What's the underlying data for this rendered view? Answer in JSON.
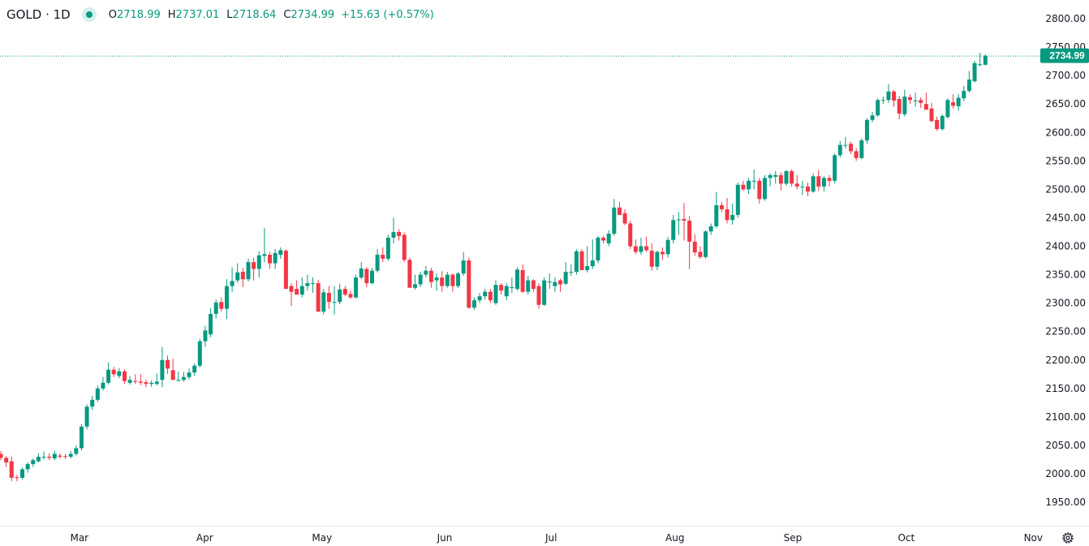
{
  "header": {
    "symbol": "GOLD · 1D",
    "open_label": "O",
    "open": "2718.99",
    "high_label": "H",
    "high": "2737.01",
    "low_label": "L",
    "low": "2718.64",
    "close_label": "C",
    "close": "2734.99",
    "change": "+15.63 (+0.57%)"
  },
  "colors": {
    "up": "#089981",
    "down": "#f23645",
    "text": "#131722"
  },
  "settings_icon": "gear-icon",
  "chart_data": {
    "type": "candlestick",
    "title": "",
    "ylim": [
      1925,
      2815
    ],
    "y_ticks": [
      "2800.00",
      "2750.00",
      "2700.00",
      "2650.00",
      "2600.00",
      "2550.00",
      "2500.00",
      "2450.00",
      "2400.00",
      "2350.00",
      "2300.00",
      "2250.00",
      "2200.00",
      "2150.00",
      "2100.00",
      "2050.00",
      "2000.00",
      "1950.00"
    ],
    "x_ticks": [
      {
        "label": "Mar",
        "bar": 14.6
      },
      {
        "label": "Apr",
        "bar": 37.9
      },
      {
        "label": "May",
        "bar": 59.7
      },
      {
        "label": "Jun",
        "bar": 82.5
      },
      {
        "label": "Jul",
        "bar": 102.3
      },
      {
        "label": "Aug",
        "bar": 125.3
      },
      {
        "label": "Sep",
        "bar": 147.2
      },
      {
        "label": "Oct",
        "bar": 168.3
      },
      {
        "label": "Nov",
        "bar": 191.9
      }
    ],
    "last_price": "2734.99",
    "last_price_value": 2734.99,
    "grid": false,
    "candles_ohlc": [
      [
        2035,
        2040,
        2024,
        2028
      ],
      [
        2028,
        2031,
        2012,
        2020
      ],
      [
        2022,
        2030,
        1987,
        1993
      ],
      [
        1994,
        1998,
        1987,
        1993
      ],
      [
        1993,
        2011,
        1990,
        2008
      ],
      [
        2008,
        2020,
        2002,
        2017
      ],
      [
        2017,
        2027,
        2012,
        2024
      ],
      [
        2022,
        2036,
        2020,
        2030
      ],
      [
        2029,
        2039,
        2025,
        2030
      ],
      [
        2030,
        2036,
        2024,
        2028
      ],
      [
        2027,
        2041,
        2024,
        2035
      ],
      [
        2032,
        2036,
        2027,
        2030
      ],
      [
        2031,
        2035,
        2026,
        2030
      ],
      [
        2030,
        2040,
        2027,
        2035
      ],
      [
        2035,
        2050,
        2032,
        2045
      ],
      [
        2045,
        2087,
        2041,
        2083
      ],
      [
        2083,
        2122,
        2078,
        2118
      ],
      [
        2118,
        2137,
        2112,
        2130
      ],
      [
        2130,
        2155,
        2126,
        2150
      ],
      [
        2150,
        2170,
        2146,
        2160
      ],
      [
        2160,
        2196,
        2157,
        2183
      ],
      [
        2183,
        2188,
        2170,
        2175
      ],
      [
        2172,
        2186,
        2168,
        2180
      ],
      [
        2180,
        2184,
        2158,
        2163
      ],
      [
        2160,
        2172,
        2157,
        2165
      ],
      [
        2163,
        2175,
        2158,
        2162
      ],
      [
        2162,
        2175,
        2156,
        2160
      ],
      [
        2161,
        2165,
        2152,
        2158
      ],
      [
        2158,
        2164,
        2153,
        2160
      ],
      [
        2158,
        2176,
        2155,
        2162
      ],
      [
        2165,
        2223,
        2152,
        2200
      ],
      [
        2200,
        2208,
        2176,
        2185
      ],
      [
        2182,
        2202,
        2175,
        2165
      ],
      [
        2165,
        2180,
        2162,
        2165
      ],
      [
        2165,
        2179,
        2162,
        2170
      ],
      [
        2170,
        2185,
        2166,
        2178
      ],
      [
        2178,
        2194,
        2172,
        2190
      ],
      [
        2190,
        2237,
        2187,
        2233
      ],
      [
        2233,
        2260,
        2223,
        2252
      ],
      [
        2245,
        2291,
        2240,
        2281
      ],
      [
        2281,
        2306,
        2273,
        2301
      ],
      [
        2302,
        2310,
        2285,
        2290
      ],
      [
        2290,
        2342,
        2272,
        2330
      ],
      [
        2330,
        2363,
        2320,
        2339
      ],
      [
        2340,
        2370,
        2336,
        2354
      ],
      [
        2355,
        2362,
        2328,
        2342
      ],
      [
        2342,
        2378,
        2338,
        2372
      ],
      [
        2372,
        2380,
        2340,
        2360
      ],
      [
        2360,
        2391,
        2345,
        2384
      ],
      [
        2383,
        2432,
        2372,
        2386
      ],
      [
        2385,
        2390,
        2360,
        2370
      ],
      [
        2370,
        2395,
        2360,
        2388
      ],
      [
        2385,
        2398,
        2378,
        2393
      ],
      [
        2392,
        2395,
        2325,
        2325
      ],
      [
        2330,
        2335,
        2295,
        2320
      ],
      [
        2325,
        2340,
        2315,
        2315
      ],
      [
        2315,
        2345,
        2310,
        2330
      ],
      [
        2330,
        2350,
        2322,
        2335
      ],
      [
        2335,
        2345,
        2318,
        2335
      ],
      [
        2335,
        2341,
        2285,
        2285
      ],
      [
        2285,
        2325,
        2280,
        2319
      ],
      [
        2318,
        2330,
        2290,
        2302
      ],
      [
        2302,
        2330,
        2280,
        2302
      ],
      [
        2302,
        2334,
        2298,
        2324
      ],
      [
        2325,
        2330,
        2312,
        2315
      ],
      [
        2316,
        2322,
        2308,
        2310
      ],
      [
        2310,
        2350,
        2308,
        2345
      ],
      [
        2345,
        2372,
        2342,
        2361
      ],
      [
        2360,
        2363,
        2328,
        2335
      ],
      [
        2335,
        2362,
        2333,
        2357
      ],
      [
        2357,
        2395,
        2354,
        2385
      ],
      [
        2385,
        2398,
        2372,
        2378
      ],
      [
        2378,
        2420,
        2374,
        2415
      ],
      [
        2415,
        2450,
        2405,
        2425
      ],
      [
        2425,
        2430,
        2410,
        2418
      ],
      [
        2420,
        2424,
        2372,
        2376
      ],
      [
        2376,
        2380,
        2327,
        2327
      ],
      [
        2327,
        2350,
        2324,
        2333
      ],
      [
        2333,
        2355,
        2328,
        2350
      ],
      [
        2350,
        2365,
        2345,
        2357
      ],
      [
        2357,
        2362,
        2327,
        2337
      ],
      [
        2340,
        2352,
        2322,
        2345
      ],
      [
        2345,
        2356,
        2320,
        2330
      ],
      [
        2330,
        2355,
        2327,
        2350
      ],
      [
        2350,
        2352,
        2320,
        2330
      ],
      [
        2330,
        2355,
        2327,
        2352
      ],
      [
        2352,
        2390,
        2348,
        2375
      ],
      [
        2375,
        2380,
        2290,
        2292
      ],
      [
        2292,
        2310,
        2288,
        2305
      ],
      [
        2305,
        2318,
        2300,
        2312
      ],
      [
        2312,
        2325,
        2306,
        2320
      ],
      [
        2320,
        2325,
        2300,
        2305
      ],
      [
        2300,
        2340,
        2297,
        2332
      ],
      [
        2332,
        2335,
        2315,
        2322
      ],
      [
        2312,
        2335,
        2305,
        2330
      ],
      [
        2328,
        2345,
        2318,
        2328
      ],
      [
        2325,
        2363,
        2322,
        2359
      ],
      [
        2358,
        2368,
        2318,
        2320
      ],
      [
        2320,
        2348,
        2315,
        2340
      ],
      [
        2340,
        2342,
        2320,
        2325
      ],
      [
        2330,
        2335,
        2290,
        2297
      ],
      [
        2297,
        2345,
        2295,
        2340
      ],
      [
        2338,
        2352,
        2325,
        2338
      ],
      [
        2330,
        2345,
        2320,
        2337
      ],
      [
        2340,
        2343,
        2320,
        2333
      ],
      [
        2334,
        2372,
        2332,
        2355
      ],
      [
        2355,
        2368,
        2348,
        2355
      ],
      [
        2355,
        2395,
        2350,
        2391
      ],
      [
        2391,
        2395,
        2363,
        2358
      ],
      [
        2358,
        2400,
        2354,
        2365
      ],
      [
        2365,
        2412,
        2360,
        2375
      ],
      [
        2375,
        2418,
        2370,
        2415
      ],
      [
        2415,
        2418,
        2405,
        2410
      ],
      [
        2405,
        2428,
        2400,
        2422
      ],
      [
        2422,
        2483,
        2418,
        2468
      ],
      [
        2468,
        2478,
        2458,
        2455
      ],
      [
        2458,
        2465,
        2437,
        2440
      ],
      [
        2440,
        2445,
        2395,
        2400
      ],
      [
        2400,
        2412,
        2386,
        2390
      ],
      [
        2390,
        2415,
        2385,
        2400
      ],
      [
        2400,
        2417,
        2390,
        2393
      ],
      [
        2392,
        2405,
        2357,
        2364
      ],
      [
        2364,
        2392,
        2358,
        2390
      ],
      [
        2390,
        2398,
        2376,
        2386
      ],
      [
        2386,
        2416,
        2380,
        2411
      ],
      [
        2411,
        2455,
        2405,
        2446
      ],
      [
        2447,
        2460,
        2420,
        2447
      ],
      [
        2448,
        2476,
        2410,
        2445
      ],
      [
        2445,
        2453,
        2360,
        2408
      ],
      [
        2408,
        2421,
        2383,
        2389
      ],
      [
        2390,
        2400,
        2378,
        2381
      ],
      [
        2381,
        2428,
        2378,
        2426
      ],
      [
        2426,
        2440,
        2420,
        2435
      ],
      [
        2435,
        2495,
        2432,
        2472
      ],
      [
        2472,
        2478,
        2460,
        2465
      ],
      [
        2465,
        2485,
        2440,
        2446
      ],
      [
        2446,
        2475,
        2438,
        2455
      ],
      [
        2455,
        2512,
        2450,
        2508
      ],
      [
        2508,
        2515,
        2497,
        2500
      ],
      [
        2500,
        2520,
        2492,
        2515
      ],
      [
        2515,
        2535,
        2500,
        2515
      ],
      [
        2515,
        2520,
        2475,
        2483
      ],
      [
        2483,
        2525,
        2480,
        2520
      ],
      [
        2520,
        2528,
        2505,
        2525
      ],
      [
        2522,
        2532,
        2510,
        2525
      ],
      [
        2525,
        2530,
        2498,
        2510
      ],
      [
        2510,
        2534,
        2506,
        2532
      ],
      [
        2532,
        2535,
        2505,
        2510
      ],
      [
        2510,
        2525,
        2500,
        2505
      ],
      [
        2505,
        2515,
        2490,
        2505
      ],
      [
        2505,
        2512,
        2488,
        2496
      ],
      [
        2496,
        2528,
        2494,
        2523
      ],
      [
        2523,
        2534,
        2497,
        2505
      ],
      [
        2505,
        2523,
        2496,
        2520
      ],
      [
        2520,
        2525,
        2505,
        2515
      ],
      [
        2515,
        2563,
        2510,
        2560
      ],
      [
        2560,
        2585,
        2556,
        2578
      ],
      [
        2578,
        2592,
        2572,
        2578
      ],
      [
        2580,
        2584,
        2562,
        2567
      ],
      [
        2567,
        2572,
        2550,
        2555
      ],
      [
        2555,
        2590,
        2553,
        2586
      ],
      [
        2586,
        2625,
        2580,
        2622
      ],
      [
        2622,
        2636,
        2618,
        2630
      ],
      [
        2630,
        2660,
        2627,
        2657
      ],
      [
        2657,
        2663,
        2650,
        2657
      ],
      [
        2657,
        2685,
        2652,
        2672
      ],
      [
        2672,
        2675,
        2645,
        2656
      ],
      [
        2659,
        2664,
        2623,
        2633
      ],
      [
        2632,
        2675,
        2628,
        2663
      ],
      [
        2662,
        2667,
        2650,
        2657
      ],
      [
        2656,
        2670,
        2645,
        2656
      ],
      [
        2657,
        2662,
        2643,
        2652
      ],
      [
        2650,
        2670,
        2640,
        2640
      ],
      [
        2642,
        2652,
        2618,
        2620
      ],
      [
        2622,
        2628,
        2603,
        2606
      ],
      [
        2606,
        2632,
        2603,
        2629
      ],
      [
        2627,
        2660,
        2624,
        2657
      ],
      [
        2653,
        2667,
        2642,
        2647
      ],
      [
        2646,
        2668,
        2638,
        2661
      ],
      [
        2660,
        2682,
        2655,
        2673
      ],
      [
        2673,
        2708,
        2670,
        2693
      ],
      [
        2690,
        2726,
        2688,
        2722
      ],
      [
        2720,
        2740,
        2716,
        2720
      ],
      [
        2719,
        2737,
        2718,
        2735
      ]
    ]
  }
}
